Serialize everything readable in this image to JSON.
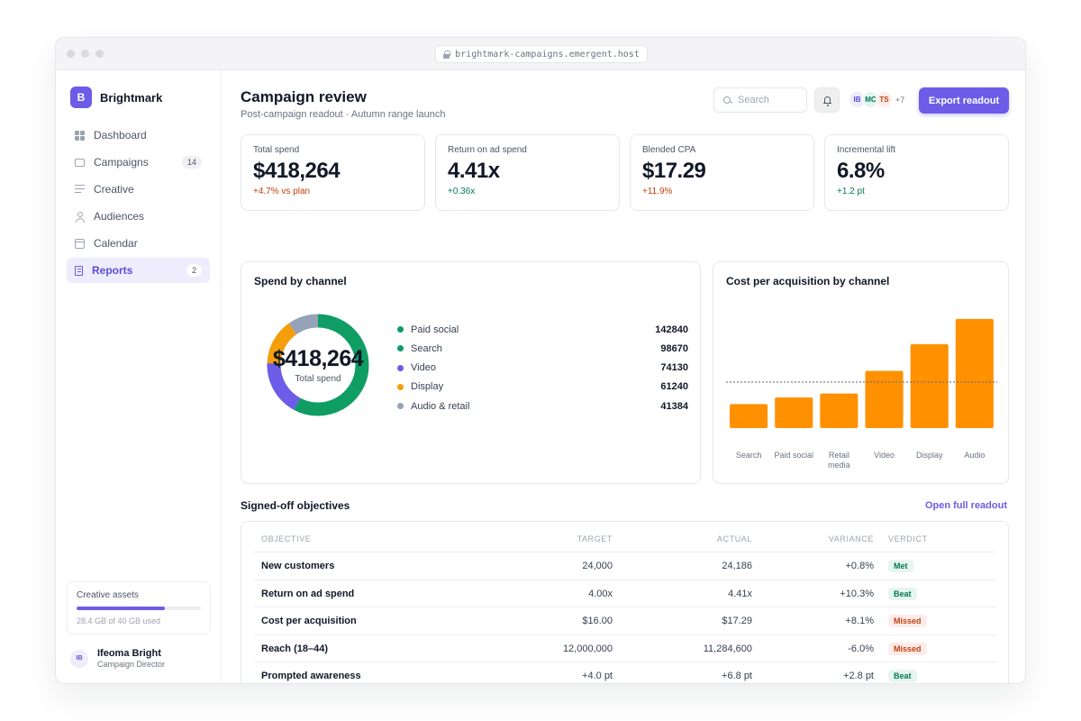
{
  "browser": {
    "url": "brightmark-campaigns.emergent.host"
  },
  "brand": {
    "logo_letter": "B",
    "name": "Brightmark",
    "accent": "#6c5ce7"
  },
  "sidebar": {
    "items": [
      {
        "label": "Dashboard",
        "icon": "grid-icon"
      },
      {
        "label": "Campaigns",
        "icon": "folder-icon",
        "count": "14"
      },
      {
        "label": "Creative",
        "icon": "lines-icon"
      },
      {
        "label": "Audiences",
        "icon": "user-icon"
      },
      {
        "label": "Calendar",
        "icon": "calendar-icon"
      },
      {
        "label": "Reports",
        "icon": "document-icon",
        "count": "2",
        "active": true
      }
    ],
    "storage": {
      "title": "Creative assets",
      "used_fraction": 0.71,
      "meta": "28.4 GB of 40 GB used"
    },
    "user": {
      "initials": "IB",
      "name": "Ifeoma Bright",
      "role": "Campaign Director"
    }
  },
  "header": {
    "title": "Campaign review",
    "subtitle": "Post-campaign readout · Autumn range launch",
    "search_placeholder": "Search",
    "avatars": [
      {
        "initials": "IB",
        "bg": "#eeecfd",
        "fg": "#5b4ed6"
      },
      {
        "initials": "MC",
        "bg": "#e3f5ec",
        "fg": "#047857"
      },
      {
        "initials": "TS",
        "bg": "#fdecea",
        "fg": "#c2410c"
      }
    ],
    "avatars_more": "+7",
    "export_label": "Export readout"
  },
  "kpis": [
    {
      "label": "Total spend",
      "value": "$418,264",
      "delta": "+4.7% vs plan",
      "delta_color": "#c2410c"
    },
    {
      "label": "Return on ad spend",
      "value": "4.41x",
      "delta": "+0.36x",
      "delta_color": "#047857"
    },
    {
      "label": "Blended CPA",
      "value": "$17.29",
      "delta": "+11.9%",
      "delta_color": "#c2410c"
    },
    {
      "label": "Incremental lift",
      "value": "6.8%",
      "delta": "+1.2 pt",
      "delta_color": "#047857"
    }
  ],
  "spend_card": {
    "title": "Spend by channel",
    "center_value": "$418,264",
    "center_label": "Total spend"
  },
  "cpa_card": {
    "title": "Cost per acquisition by channel"
  },
  "chart_data": [
    {
      "type": "pie",
      "title": "Spend by channel",
      "categories": [
        "Paid social",
        "Search",
        "Video",
        "Display",
        "Audio & retail"
      ],
      "values": [
        142840,
        98670,
        74130,
        61240,
        41384
      ],
      "colors": [
        "#0f9d63",
        "#0f9d63",
        "#6c5ce7",
        "#f59e0b",
        "#94a3b8"
      ],
      "donut": true,
      "legend": "right"
    },
    {
      "type": "bar",
      "title": "Cost per acquisition by channel",
      "categories": [
        "Search",
        "Paid social",
        "Retail media",
        "Video",
        "Display",
        "Audio"
      ],
      "values": [
        9,
        11.5,
        13,
        21.5,
        31.5,
        41
      ],
      "ylim": [
        0,
        44
      ],
      "reference_line": 17.29,
      "color": "#ff9000",
      "grid": false,
      "ylabel": "",
      "xlabel": ""
    }
  ],
  "objectives": {
    "title": "Signed-off objectives",
    "link_label": "Open full readout",
    "columns": [
      "OBJECTIVE",
      "TARGET",
      "ACTUAL",
      "VARIANCE",
      "VERDICT"
    ],
    "rows": [
      {
        "objective": "New customers",
        "target": "24,000",
        "actual": "24,186",
        "variance": "+0.8%",
        "verdict": "Met",
        "kind": "met"
      },
      {
        "objective": "Return on ad spend",
        "target": "4.00x",
        "actual": "4.41x",
        "variance": "+10.3%",
        "verdict": "Beat",
        "kind": "beat"
      },
      {
        "objective": "Cost per acquisition",
        "target": "$16.00",
        "actual": "$17.29",
        "variance": "+8.1%",
        "verdict": "Missed",
        "kind": "missed"
      },
      {
        "objective": "Reach (18–44)",
        "target": "12,000,000",
        "actual": "11,284,600",
        "variance": "-6.0%",
        "verdict": "Missed",
        "kind": "missed"
      },
      {
        "objective": "Prompted awareness",
        "target": "+4.0 pt",
        "actual": "+6.8 pt",
        "variance": "+2.8 pt",
        "verdict": "Beat",
        "kind": "beat"
      }
    ]
  }
}
